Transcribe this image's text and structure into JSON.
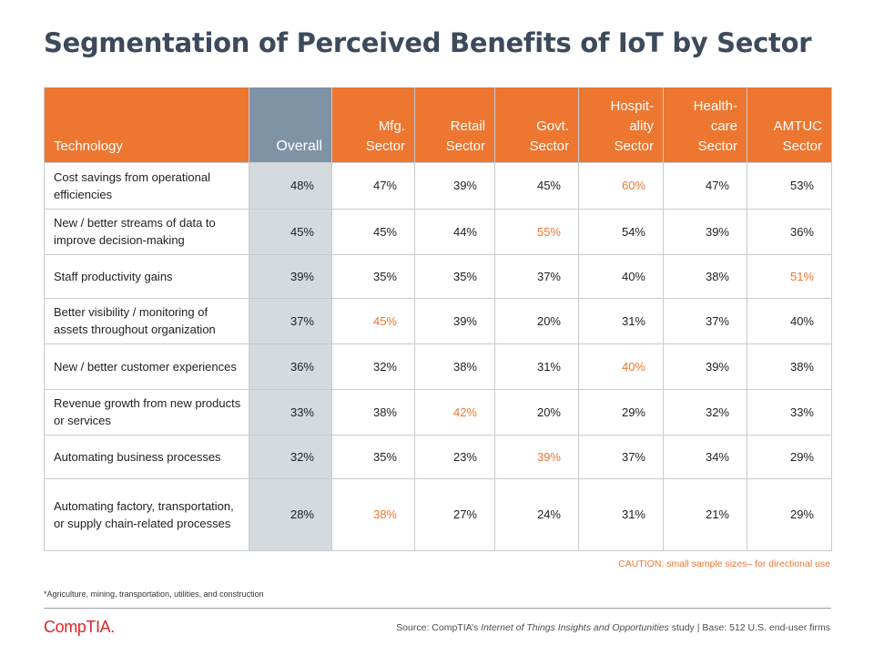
{
  "title": "Segmentation of Perceived Benefits of IoT by Sector",
  "colors": {
    "accent": "#ed7731",
    "overall_header": "#7f93a6",
    "overall_cell": "#d5dadf",
    "title": "#3c4a5c",
    "logo": "#d9292b"
  },
  "table": {
    "headers": [
      "Technology",
      "Overall",
      "Mfg.\nSector",
      "Retail\nSector",
      "Govt.\nSector",
      "Hospit-\nality\nSector",
      "Health-\ncare\nSector",
      "AMTUC\nSector"
    ],
    "rows": [
      {
        "label": "Cost savings from operational efficiencies",
        "values": [
          "48%",
          "47%",
          "39%",
          "45%",
          "60%",
          "47%",
          "53%"
        ],
        "highlight": [
          4
        ]
      },
      {
        "label": "New / better streams of data to improve decision-making",
        "values": [
          "45%",
          "45%",
          "44%",
          "55%",
          "54%",
          "39%",
          "36%"
        ],
        "highlight": [
          3
        ]
      },
      {
        "label": "Staff productivity gains",
        "values": [
          "39%",
          "35%",
          "35%",
          "37%",
          "40%",
          "38%",
          "51%"
        ],
        "highlight": [
          6
        ]
      },
      {
        "label": "Better visibility / monitoring of assets throughout organization",
        "values": [
          "37%",
          "45%",
          "39%",
          "20%",
          "31%",
          "37%",
          "40%"
        ],
        "highlight": [
          1
        ]
      },
      {
        "label": "New / better customer experiences",
        "values": [
          "36%",
          "32%",
          "38%",
          "31%",
          "40%",
          "39%",
          "38%"
        ],
        "highlight": [
          4
        ]
      },
      {
        "label": "Revenue growth from new products or services",
        "values": [
          "33%",
          "38%",
          "42%",
          "20%",
          "29%",
          "32%",
          "33%"
        ],
        "highlight": [
          2
        ]
      },
      {
        "label": "Automating business processes",
        "values": [
          "32%",
          "35%",
          "23%",
          "39%",
          "37%",
          "34%",
          "29%"
        ],
        "highlight": [
          3
        ]
      },
      {
        "label": "Automating factory, transportation, or supply chain-related processes",
        "values": [
          "28%",
          "38%",
          "27%",
          "24%",
          "31%",
          "21%",
          "29%"
        ],
        "highlight": [
          1
        ]
      }
    ]
  },
  "caution": "CAUTION: small sample sizes– for directional use",
  "footnote": "*Agriculture, mining, transportation, utilities, and construction",
  "logo_text": "CompTIA.",
  "source": {
    "prefix": "Source: CompTIA’s ",
    "italic": "Internet of Things Insights and Opportunities",
    "suffix": " study | Base: 512 U.S. end-user firms"
  }
}
